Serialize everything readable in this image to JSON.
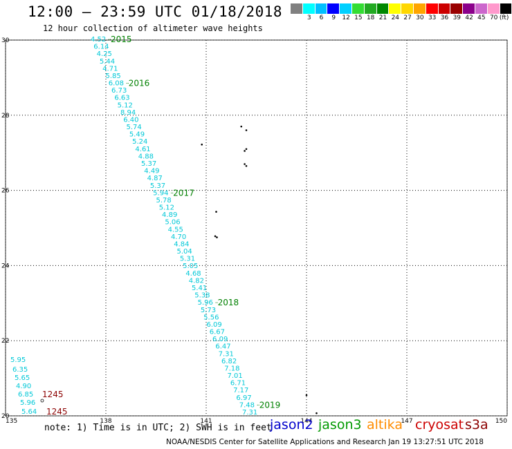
{
  "header": {
    "title": "12:00 – 23:59 UTC 01/18/2018",
    "subtitle": "12 hour collection of altimeter wave heights"
  },
  "legend": {
    "unit": "(ft)",
    "colors": [
      "#808080",
      "#00ffff",
      "#00bfff",
      "#0000ff",
      "#00d0ff",
      "#33dd33",
      "#22aa22",
      "#008800",
      "#ffff00",
      "#ffd700",
      "#ffa500",
      "#ff0000",
      "#cc0000",
      "#990000",
      "#8b008b",
      "#cc66cc",
      "#ff99cc",
      "#000000"
    ],
    "ticks": [
      "3",
      "6",
      "9",
      "12",
      "15",
      "18",
      "21",
      "24",
      "27",
      "30",
      "33",
      "36",
      "39",
      "42",
      "45",
      "70"
    ]
  },
  "map": {
    "lat_labels": [
      "30",
      "28",
      "26",
      "24",
      "22",
      "20"
    ],
    "lon_labels": [
      "135",
      "138",
      "141",
      "144",
      "147",
      "150"
    ],
    "lat_range": [
      20,
      30
    ],
    "lon_range": [
      135,
      150
    ],
    "grid": "dotted"
  },
  "track_main": {
    "color": "#00c8d7",
    "values": [
      "4.52",
      "6.14",
      "4.25",
      "5.44",
      "4.71",
      "5.85",
      "6.08",
      "6.73",
      "6.63",
      "5.12",
      "8.94",
      "6.40",
      "5.74",
      "5.49",
      "5.24",
      "4.61",
      "4.88",
      "5.37",
      "4.49",
      "4.87",
      "5.37",
      "5.94",
      "5.78",
      "5.12",
      "4.89",
      "5.06",
      "4.55",
      "4.70",
      "4.84",
      "5.04",
      "5.31",
      "5.05",
      "4.68",
      "4.82",
      "5.41",
      "5.38",
      "5.96",
      "5.73",
      "5.56",
      "6.09",
      "6.67",
      "6.09",
      "6.47",
      "7.31",
      "6.82",
      "7.18",
      "7.01",
      "6.71",
      "7.17",
      "6.97",
      "7.48",
      "7.31"
    ],
    "hour_labels": [
      {
        "label": "2015",
        "at_index": 0
      },
      {
        "label": "2016",
        "at_index": 6
      },
      {
        "label": "2017",
        "at_index": 21
      },
      {
        "label": "2018",
        "at_index": 36
      },
      {
        "label": "2019",
        "at_index": 50
      }
    ],
    "hour_label_color": "#008000"
  },
  "track_west": {
    "color": "#00c8d7",
    "values": [
      "5.95",
      "6.35",
      "5.65",
      "4.90",
      "6.85",
      "5.96",
      "5.64"
    ],
    "hour_labels": [
      "1245",
      "1245"
    ],
    "hour_label_color": "#8b0000"
  },
  "satellites": [
    {
      "name": "jason2",
      "color": "#0000cc"
    },
    {
      "name": "jason3",
      "color": "#009900"
    },
    {
      "name": "altika",
      "color": "#ff8c00"
    },
    {
      "name": "cryosat",
      "color": "#cc0000"
    },
    {
      "name": "s3a",
      "color": "#8b0000"
    }
  ],
  "note": "note: 1) Time is in UTC; 2) SWH is in feet",
  "footer": "NOAA/NESDIS Center for Satellite Applications and Research    Jan 19 13:27:51 UTC 2018"
}
